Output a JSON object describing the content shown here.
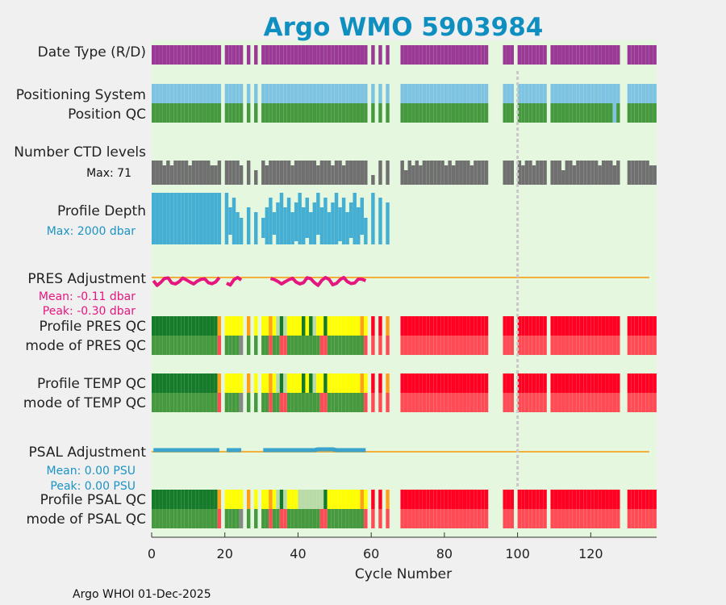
{
  "chart_data": {
    "type": "bar",
    "title": "Argo WMO 5903984",
    "xlabel": "Cycle Number",
    "xlim": [
      0,
      138
    ],
    "xticks": [
      0,
      20,
      40,
      60,
      80,
      100,
      120
    ],
    "xtick_labels": [
      "0",
      "20",
      "40",
      "60",
      "80",
      "100",
      "120"
    ],
    "marker_line_cycle": 100,
    "footer": "Argo WHOI 01-Dec-2025",
    "cycles_present": [
      0,
      1,
      2,
      3,
      4,
      5,
      6,
      7,
      8,
      9,
      10,
      11,
      12,
      13,
      14,
      15,
      16,
      17,
      18,
      20,
      21,
      22,
      23,
      24,
      26,
      28,
      30,
      31,
      32,
      33,
      34,
      35,
      36,
      37,
      38,
      39,
      40,
      41,
      42,
      43,
      44,
      45,
      46,
      47,
      48,
      49,
      50,
      51,
      52,
      53,
      54,
      55,
      56,
      57,
      58,
      60,
      62,
      64,
      68,
      69,
      70,
      71,
      72,
      73,
      74,
      75,
      76,
      77,
      78,
      79,
      80,
      81,
      82,
      83,
      84,
      85,
      86,
      87,
      88,
      89,
      90,
      91,
      96,
      97,
      98,
      100,
      101,
      102,
      103,
      104,
      105,
      106,
      107,
      109,
      110,
      111,
      112,
      113,
      114,
      115,
      116,
      117,
      118,
      119,
      120,
      121,
      122,
      123,
      124,
      125,
      126,
      127,
      130,
      131,
      132,
      133,
      134,
      135,
      136,
      137
    ],
    "rows": {
      "date_type": {
        "label": "Date Type (R/D)",
        "color": "#9b3a96"
      },
      "positioning_system": {
        "label": "Positioning System",
        "color": "#7ec4e2"
      },
      "position_qc": {
        "label": "Position QC",
        "color": "#46993f"
      },
      "number_ctd_levels": {
        "label": "Number CTD levels",
        "sublabel": "Max: 71",
        "color": "#707070"
      },
      "profile_depth": {
        "label": "Profile Depth",
        "sublabel": "Max: 2000 dbar",
        "color": "#45aed3",
        "max_cycle": 65
      },
      "pres_adjustment": {
        "label": "PRES Adjustment",
        "mean": "Mean: -0.11 dbar",
        "peak": "Peak: -0.30 dbar",
        "color": "#e6167f"
      },
      "profile_pres_qc": {
        "label": "Profile PRES QC"
      },
      "mode_pres_qc": {
        "label": "mode of PRES QC"
      },
      "profile_temp_qc": {
        "label": "Profile TEMP QC"
      },
      "mode_temp_qc": {
        "label": "mode of TEMP QC"
      },
      "psal_adjustment": {
        "label": "PSAL Adjustment",
        "mean": "Mean: 0.00 PSU",
        "peak": "Peak: 0.00 PSU",
        "color": "#3ba3cc"
      },
      "profile_psal_qc": {
        "label": "Profile PSAL QC"
      },
      "mode_psal_qc": {
        "label": "mode of PSAL QC"
      }
    },
    "qc_colors": {
      "A": "#157a2a",
      "B": "#ff9f1a",
      "C": "#ffff00",
      "D": "#b8dba8",
      "E": "#ff0022",
      "good": "#46993f",
      "bad": "#ff4b55",
      "neutral": "#888888"
    },
    "colors": {
      "title": "#0e8fc0",
      "plot_bg": "#e5f8df",
      "zero_line": "#f2b03a",
      "marker_line": "#c8c8c8"
    }
  }
}
